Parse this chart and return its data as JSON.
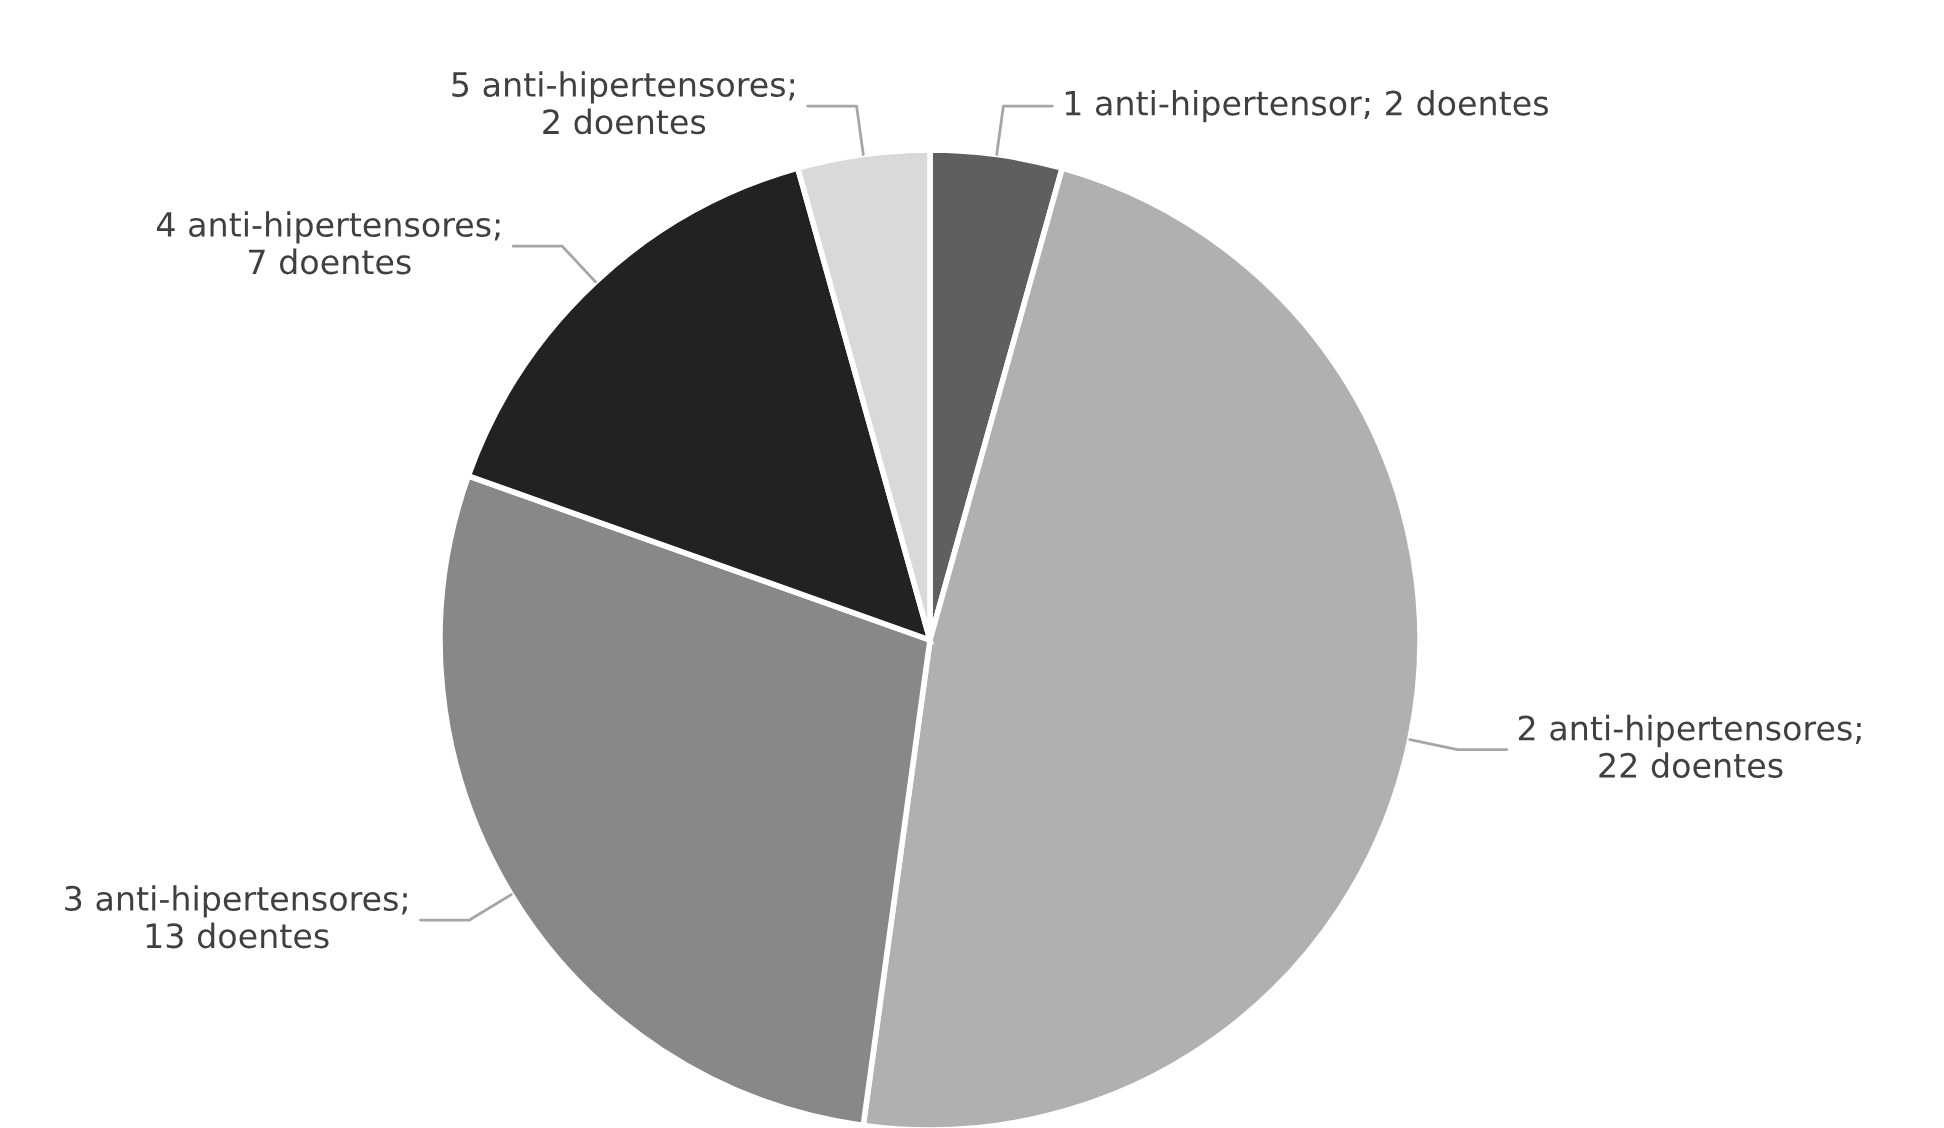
{
  "chart_data": {
    "type": "pie",
    "categories": [
      "1 anti-hipertensor; 2 doentes",
      "2 anti-hipertensores;\n22 doentes",
      "3 anti-hipertensores;\n13 doentes",
      "4 anti-hipertensores;\n7 doentes",
      "5 anti-hipertensores;\n2 doentes"
    ],
    "values": [
      2,
      22,
      13,
      7,
      2
    ],
    "colors": [
      "#5f5f5f",
      "#b0b0b0",
      "#888888",
      "#222222",
      "#d9d9d9"
    ]
  }
}
